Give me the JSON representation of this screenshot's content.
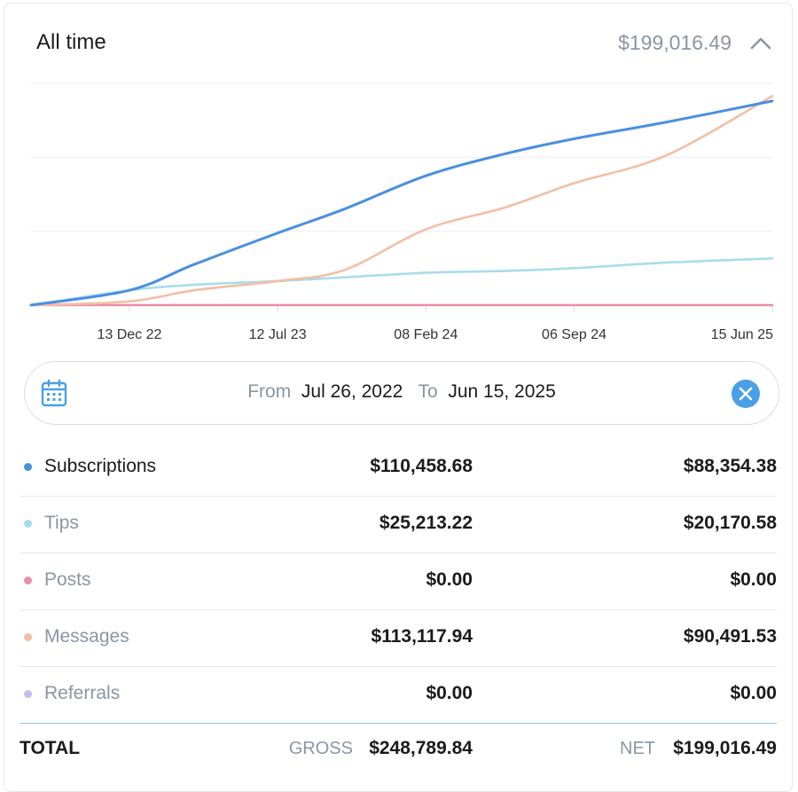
{
  "header": {
    "title": "All time",
    "total": "$199,016.49",
    "collapse_icon": "chevron-up-icon"
  },
  "date_range": {
    "calendar_icon": "calendar-icon",
    "from_label": "From",
    "from_value": "Jul 26, 2022",
    "to_label": "To",
    "to_value": "Jun 15, 2025",
    "clear_icon": "close-icon"
  },
  "colors": {
    "subscriptions": "#4a8fe0",
    "tips": "#a9dcea",
    "posts": "#e98fa5",
    "messages": "#f3bea6",
    "referrals": "#c6bde6"
  },
  "rows": [
    {
      "label": "Subscriptions",
      "gross": "$110,458.68",
      "net": "$88,354.38",
      "color": "#4a8fe0",
      "label_color": "#1b1b1b"
    },
    {
      "label": "Tips",
      "gross": "$25,213.22",
      "net": "$20,170.58",
      "color": "#a9dcea",
      "label_color": "#8a96a3"
    },
    {
      "label": "Posts",
      "gross": "$0.00",
      "net": "$0.00",
      "color": "#e98fa5",
      "label_color": "#8a96a3"
    },
    {
      "label": "Messages",
      "gross": "$113,117.94",
      "net": "$90,491.53",
      "color": "#f3bea6",
      "label_color": "#8a96a3"
    },
    {
      "label": "Referrals",
      "gross": "$0.00",
      "net": "$0.00",
      "color": "#c6bde6",
      "label_color": "#8a96a3"
    }
  ],
  "totals": {
    "label": "TOTAL",
    "gross_label": "GROSS",
    "gross": "$248,789.84",
    "net_label": "NET",
    "net": "$199,016.49"
  },
  "chart_data": {
    "type": "line",
    "x_ticks": [
      "13 Dec 22",
      "12 Jul 23",
      "08 Feb 24",
      "06 Sep 24",
      "15 Jun 25"
    ],
    "x": [
      "2022-07-26",
      "2022-12-13",
      "2023-03-15",
      "2023-07-12",
      "2023-10-15",
      "2024-02-08",
      "2024-06-01",
      "2024-09-06",
      "2025-01-15",
      "2025-06-15"
    ],
    "ylim": [
      0,
      120000
    ],
    "grid": true,
    "series": [
      {
        "key": "subscriptions",
        "values": [
          0,
          8000,
          22000,
          39000,
          52000,
          70000,
          82000,
          90000,
          99000,
          110458
        ]
      },
      {
        "key": "messages",
        "values": [
          0,
          2000,
          8000,
          13000,
          19000,
          41000,
          53000,
          66000,
          81000,
          113118
        ]
      },
      {
        "key": "tips",
        "values": [
          0,
          8000,
          11000,
          13000,
          15000,
          17500,
          18500,
          20000,
          23000,
          25213
        ]
      },
      {
        "key": "posts",
        "values": [
          0,
          0,
          0,
          0,
          0,
          0,
          0,
          0,
          0,
          0
        ]
      }
    ]
  }
}
